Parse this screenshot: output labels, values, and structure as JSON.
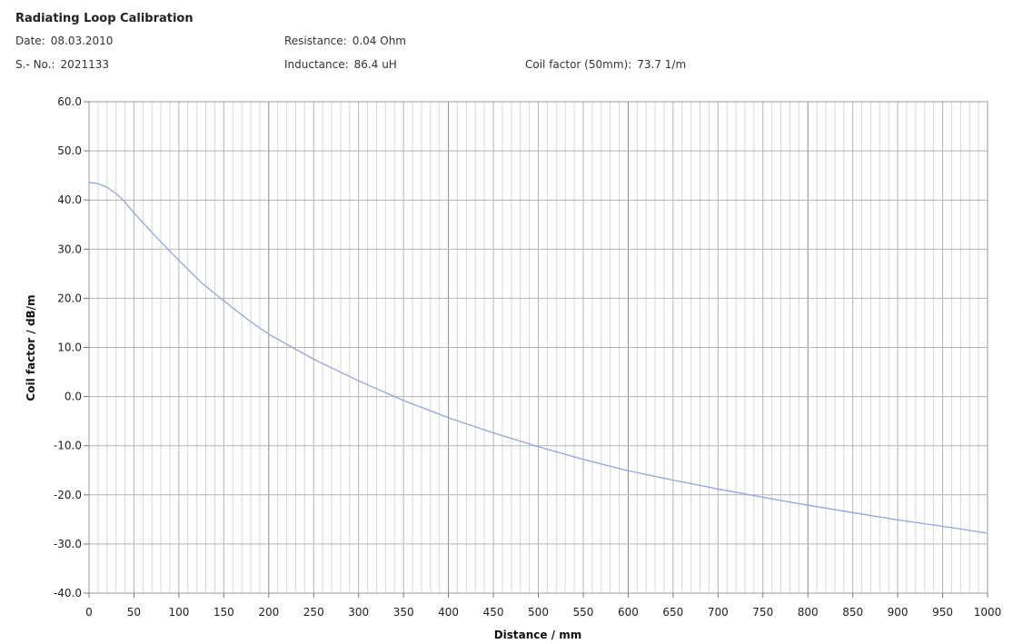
{
  "header": {
    "title": "Radiating Loop Calibration",
    "date_label": "Date:",
    "date_value": "08.03.2010",
    "serial_label": "S.- No.:",
    "serial_value": "2021133",
    "resistance_label": "Resistance:",
    "resistance_value": "0.04 Ohm",
    "inductance_label": "Inductance:",
    "inductance_value": "86.4 uH",
    "coil_factor_label": "Coil factor (50mm):",
    "coil_factor_value": "73.7 1/m"
  },
  "chart_data": {
    "type": "line",
    "title": "",
    "xlabel": "Distance / mm",
    "ylabel": "Coil factor / dB/m",
    "xlim": [
      0,
      1000
    ],
    "ylim": [
      -40,
      60
    ],
    "x_ticks": [
      "0",
      "50",
      "100",
      "150",
      "200",
      "250",
      "300",
      "350",
      "400",
      "450",
      "500",
      "550",
      "600",
      "650",
      "700",
      "750",
      "800",
      "850",
      "900",
      "950",
      "1000"
    ],
    "y_ticks": [
      "60.0",
      "50.0",
      "40.0",
      "30.0",
      "20.0",
      "10.0",
      "0.0",
      "-10.0",
      "-20.0",
      "-30.0",
      "-40.0"
    ],
    "grid": true,
    "series": [
      {
        "color": "#8fa6e0",
        "x": [
          0,
          10,
          20,
          30,
          40,
          50,
          75,
          100,
          125,
          150,
          175,
          200,
          250,
          300,
          350,
          400,
          450,
          500,
          550,
          600,
          650,
          700,
          750,
          800,
          850,
          900,
          950,
          1000
        ],
        "y": [
          43.6,
          43.3,
          42.6,
          41.3,
          39.6,
          37.4,
          32.4,
          27.7,
          23.2,
          19.5,
          15.9,
          12.7,
          7.6,
          3.2,
          -0.8,
          -4.3,
          -7.4,
          -10.2,
          -12.8,
          -15.1,
          -17.0,
          -18.8,
          -20.5,
          -22.1,
          -23.6,
          -25.1,
          -26.4,
          -27.8
        ]
      }
    ]
  }
}
